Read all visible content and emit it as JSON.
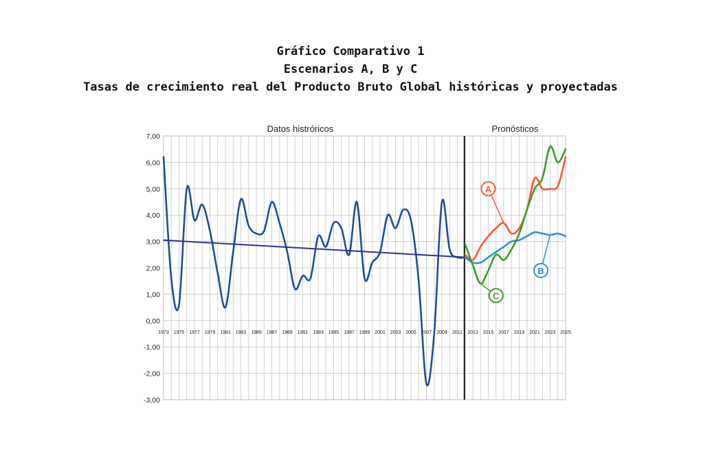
{
  "title_lines": [
    "Gráfico Comparativo 1",
    "Escenarios A, B y C",
    "Tasas de crecimiento real del Producto Bruto Global históricas y proyectadas"
  ],
  "chart_data": {
    "type": "line",
    "section_labels": {
      "historical": "Datos histróricos",
      "forecast": "Pronósticos"
    },
    "forecast_start_year": 2012,
    "xlim": [
      1973,
      2025
    ],
    "ylim": [
      -3,
      7
    ],
    "y_ticks": [
      7,
      6,
      5,
      4,
      3,
      2,
      1,
      0,
      -1,
      -2,
      -3
    ],
    "y_tick_labels": [
      "7,00",
      "6,00",
      "5,00",
      "4,00",
      "3,00",
      "2,00",
      "1,00",
      "0,00",
      "-1,00",
      "-2,00",
      "-3,00"
    ],
    "x_tick_labels": [
      "1973",
      "1975",
      "1977",
      "1979",
      "1981",
      "1983",
      "1985",
      "1987",
      "1989",
      "1991",
      "1993",
      "1995",
      "1997",
      "1999",
      "2001",
      "2003",
      "2005",
      "2007",
      "2009",
      "2011",
      "2013",
      "2015",
      "2017",
      "2019",
      "2021",
      "2023",
      "2025"
    ],
    "x_tick_years": [
      1973,
      1975,
      1977,
      1979,
      1981,
      1983,
      1985,
      1987,
      1989,
      1991,
      1993,
      1995,
      1997,
      1999,
      2001,
      2003,
      2005,
      2007,
      2009,
      2011,
      2013,
      2015,
      2017,
      2019,
      2021,
      2023,
      2025
    ],
    "grid": true,
    "series": [
      {
        "key": "historical",
        "color": "#1f4e8c",
        "x": [
          1973,
          1974,
          1975,
          1976,
          1977,
          1978,
          1979,
          1980,
          1981,
          1982,
          1983,
          1984,
          1985,
          1986,
          1987,
          1988,
          1989,
          1990,
          1991,
          1992,
          1993,
          1994,
          1995,
          1996,
          1997,
          1998,
          1999,
          2000,
          2001,
          2002,
          2003,
          2004,
          2005,
          2006,
          2007,
          2008,
          2009,
          2010,
          2011,
          2012
        ],
        "y": [
          6.2,
          1.6,
          0.6,
          5.0,
          3.8,
          4.4,
          3.4,
          1.8,
          0.5,
          2.6,
          4.6,
          3.6,
          3.3,
          3.4,
          4.5,
          3.7,
          2.6,
          1.2,
          1.7,
          1.6,
          3.2,
          2.8,
          3.7,
          3.5,
          2.5,
          4.5,
          1.6,
          2.2,
          2.6,
          4.0,
          3.5,
          4.2,
          3.8,
          1.5,
          -2.4,
          -0.5,
          4.5,
          2.7,
          2.4,
          2.4
        ]
      },
      {
        "key": "trend",
        "color": "#2d2ea0",
        "x": [
          1973,
          2012
        ],
        "y": [
          3.05,
          2.4
        ]
      },
      {
        "key": "A",
        "label": "A",
        "color": "#ff5533",
        "x": [
          2012,
          2013,
          2014,
          2015,
          2016,
          2017,
          2018,
          2019,
          2020,
          2021,
          2022,
          2023,
          2024,
          2025
        ],
        "y": [
          2.5,
          2.3,
          2.8,
          3.2,
          3.5,
          3.7,
          3.3,
          3.5,
          4.2,
          5.4,
          5.0,
          5.0,
          5.1,
          6.2
        ]
      },
      {
        "key": "B",
        "label": "B",
        "color": "#2b8fd8",
        "x": [
          2012,
          2013,
          2014,
          2015,
          2016,
          2017,
          2018,
          2019,
          2020,
          2021,
          2022,
          2023,
          2024,
          2025
        ],
        "y": [
          2.4,
          2.2,
          2.2,
          2.4,
          2.6,
          2.8,
          3.0,
          3.05,
          3.2,
          3.35,
          3.3,
          3.25,
          3.3,
          3.2
        ]
      },
      {
        "key": "C",
        "label": "C",
        "color": "#3a9a2a",
        "x": [
          2012,
          2013,
          2014,
          2015,
          2016,
          2017,
          2018,
          2019,
          2020,
          2021,
          2022,
          2023,
          2024,
          2025
        ],
        "y": [
          2.9,
          2.1,
          1.4,
          1.9,
          2.5,
          2.3,
          2.7,
          3.3,
          4.2,
          5.0,
          5.4,
          6.6,
          6.0,
          6.5
        ]
      }
    ],
    "markers": [
      {
        "label": "A",
        "color": "#ff5533",
        "x": 2015.0,
        "y": 5.0
      },
      {
        "label": "B",
        "color": "#2b8fd8",
        "x": 2021.8,
        "y": 1.9
      },
      {
        "label": "C",
        "color": "#3a9a2a",
        "x": 2016.0,
        "y": 0.95
      }
    ]
  }
}
